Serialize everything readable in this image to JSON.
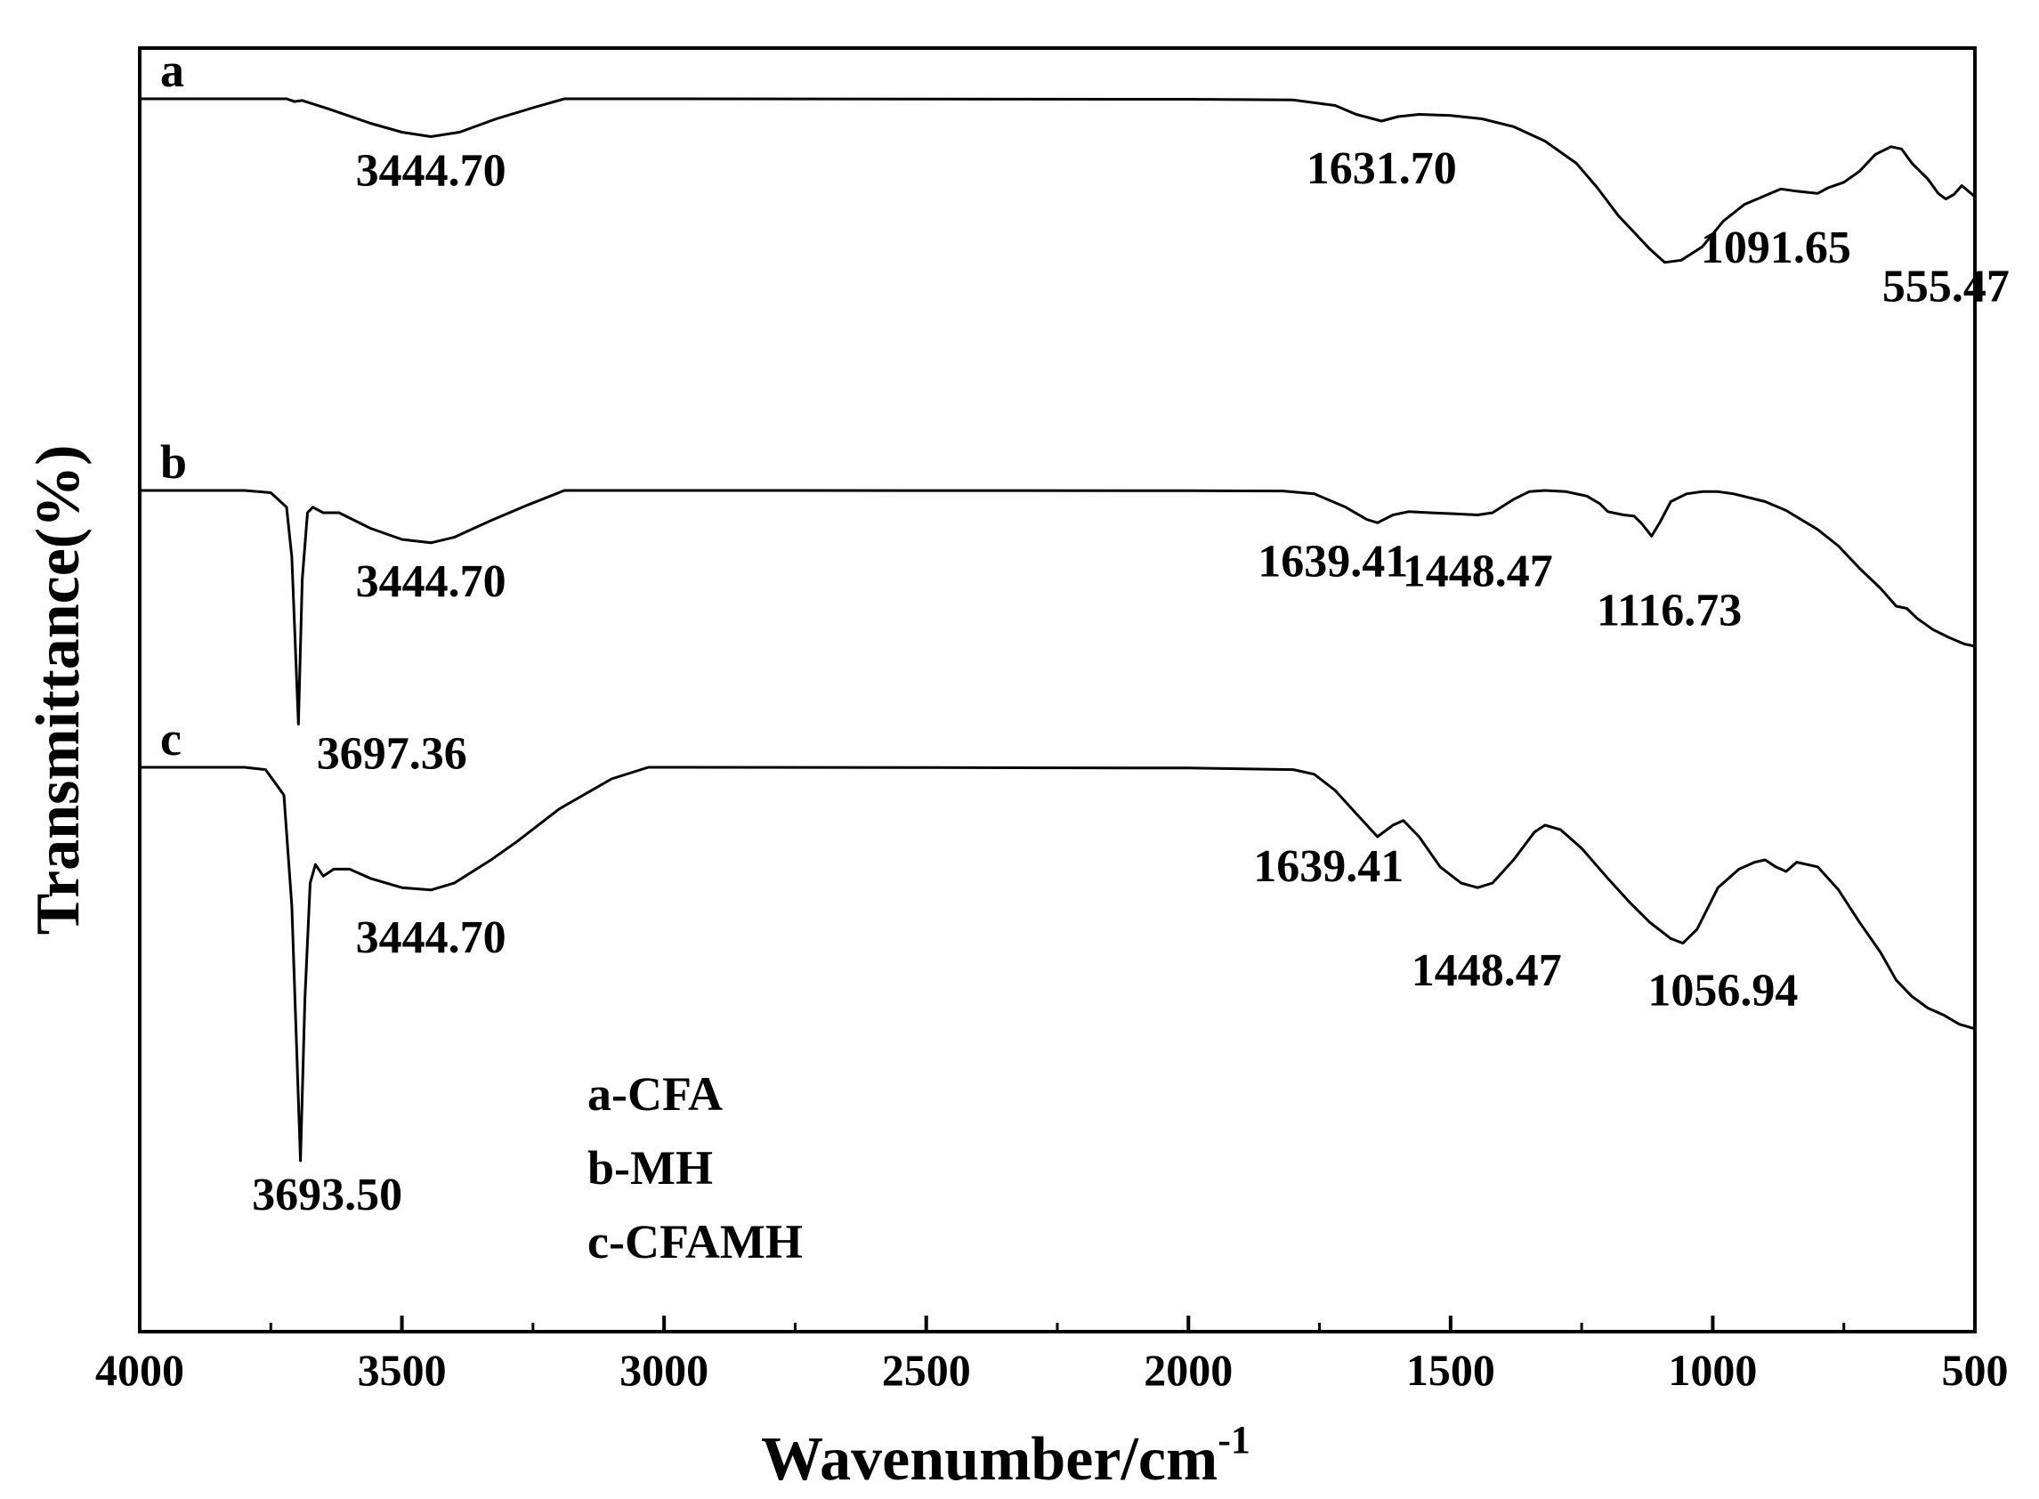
{
  "chart_data": {
    "type": "line",
    "xlabel": "Wavenumber/cm",
    "xlabel_sup": "-1",
    "ylabel": "Transmittance(%)",
    "xlim": [
      4000,
      500
    ],
    "x_ticks": [
      "4000",
      "3500",
      "3000",
      "2500",
      "2000",
      "1500",
      "1000",
      "500"
    ],
    "y_ticks": "none",
    "grid": false,
    "legend_position": "center-left",
    "legend": [
      "a-CFA",
      "b-MH",
      "c-CFAMH"
    ],
    "series": [
      {
        "name": "a",
        "points": [
          [
            4000,
            1.0
          ],
          [
            3720,
            1.0
          ],
          [
            3705,
            0.975
          ],
          [
            3690,
            0.985
          ],
          [
            3640,
            0.91
          ],
          [
            3560,
            0.78
          ],
          [
            3500,
            0.7
          ],
          [
            3444.7,
            0.66
          ],
          [
            3390,
            0.7
          ],
          [
            3320,
            0.82
          ],
          [
            3250,
            0.92
          ],
          [
            3190,
            1.0
          ],
          [
            3000,
            1.0
          ],
          [
            2500,
            0.998
          ],
          [
            2000,
            0.996
          ],
          [
            1800,
            0.99
          ],
          [
            1720,
            0.94
          ],
          [
            1680,
            0.86
          ],
          [
            1631.7,
            0.8
          ],
          [
            1600,
            0.84
          ],
          [
            1560,
            0.86
          ],
          [
            1500,
            0.85
          ],
          [
            1440,
            0.82
          ],
          [
            1380,
            0.75
          ],
          [
            1320,
            0.62
          ],
          [
            1260,
            0.42
          ],
          [
            1220,
            0.2
          ],
          [
            1180,
            -0.05
          ],
          [
            1150,
            -0.2
          ],
          [
            1120,
            -0.35
          ],
          [
            1091.65,
            -0.47
          ],
          [
            1060,
            -0.45
          ],
          [
            1020,
            -0.33
          ],
          [
            980,
            -0.1
          ],
          [
            940,
            0.05
          ],
          [
            900,
            0.13
          ],
          [
            870,
            0.19
          ],
          [
            840,
            0.17
          ],
          [
            800,
            0.15
          ],
          [
            780,
            0.2
          ],
          [
            750,
            0.25
          ],
          [
            720,
            0.35
          ],
          [
            690,
            0.5
          ],
          [
            660,
            0.57
          ],
          [
            640,
            0.55
          ],
          [
            620,
            0.42
          ],
          [
            590,
            0.28
          ],
          [
            570,
            0.15
          ],
          [
            555.47,
            0.1
          ],
          [
            540,
            0.14
          ],
          [
            525,
            0.22
          ],
          [
            510,
            0.16
          ],
          [
            500,
            0.12
          ]
        ]
      },
      {
        "name": "b",
        "points": [
          [
            4000,
            1.0
          ],
          [
            3800,
            1.0
          ],
          [
            3750,
            0.98
          ],
          [
            3720,
            0.85
          ],
          [
            3710,
            0.4
          ],
          [
            3697.36,
            -1.1
          ],
          [
            3690,
            0.2
          ],
          [
            3680,
            0.8
          ],
          [
            3670,
            0.85
          ],
          [
            3650,
            0.8
          ],
          [
            3620,
            0.8
          ],
          [
            3560,
            0.66
          ],
          [
            3500,
            0.56
          ],
          [
            3444.7,
            0.53
          ],
          [
            3400,
            0.58
          ],
          [
            3330,
            0.73
          ],
          [
            3260,
            0.87
          ],
          [
            3190,
            1.0
          ],
          [
            3000,
            1.0
          ],
          [
            2500,
            0.999
          ],
          [
            2000,
            0.998
          ],
          [
            1820,
            0.995
          ],
          [
            1760,
            0.97
          ],
          [
            1700,
            0.85
          ],
          [
            1660,
            0.74
          ],
          [
            1639.41,
            0.71
          ],
          [
            1610,
            0.78
          ],
          [
            1580,
            0.81
          ],
          [
            1540,
            0.8
          ],
          [
            1490,
            0.79
          ],
          [
            1448.47,
            0.78
          ],
          [
            1420,
            0.8
          ],
          [
            1380,
            0.92
          ],
          [
            1350,
            0.99
          ],
          [
            1320,
            1.0
          ],
          [
            1280,
            0.99
          ],
          [
            1240,
            0.95
          ],
          [
            1215,
            0.88
          ],
          [
            1200,
            0.81
          ],
          [
            1170,
            0.78
          ],
          [
            1150,
            0.77
          ],
          [
            1135,
            0.7
          ],
          [
            1116.73,
            0.59
          ],
          [
            1100,
            0.72
          ],
          [
            1080,
            0.9
          ],
          [
            1050,
            0.97
          ],
          [
            1020,
            0.99
          ],
          [
            990,
            0.99
          ],
          [
            960,
            0.97
          ],
          [
            900,
            0.9
          ],
          [
            860,
            0.82
          ],
          [
            800,
            0.65
          ],
          [
            760,
            0.5
          ],
          [
            720,
            0.3
          ],
          [
            680,
            0.12
          ],
          [
            650,
            -0.04
          ],
          [
            630,
            -0.06
          ],
          [
            610,
            -0.15
          ],
          [
            580,
            -0.25
          ],
          [
            550,
            -0.32
          ],
          [
            520,
            -0.38
          ],
          [
            500,
            -0.4
          ]
        ]
      },
      {
        "name": "c",
        "points": [
          [
            4000,
            1.0
          ],
          [
            3800,
            1.0
          ],
          [
            3760,
            0.99
          ],
          [
            3725,
            0.88
          ],
          [
            3710,
            0.4
          ],
          [
            3693.5,
            -0.7
          ],
          [
            3685,
            0.0
          ],
          [
            3675,
            0.5
          ],
          [
            3665,
            0.58
          ],
          [
            3650,
            0.53
          ],
          [
            3630,
            0.56
          ],
          [
            3600,
            0.56
          ],
          [
            3560,
            0.52
          ],
          [
            3500,
            0.48
          ],
          [
            3444.7,
            0.47
          ],
          [
            3400,
            0.5
          ],
          [
            3330,
            0.6
          ],
          [
            3280,
            0.68
          ],
          [
            3200,
            0.82
          ],
          [
            3100,
            0.95
          ],
          [
            3030,
            1.0
          ],
          [
            2500,
            0.999
          ],
          [
            2000,
            0.997
          ],
          [
            1800,
            0.99
          ],
          [
            1760,
            0.97
          ],
          [
            1720,
            0.9
          ],
          [
            1680,
            0.8
          ],
          [
            1639.41,
            0.7
          ],
          [
            1610,
            0.75
          ],
          [
            1590,
            0.77
          ],
          [
            1560,
            0.7
          ],
          [
            1520,
            0.57
          ],
          [
            1480,
            0.5
          ],
          [
            1448.47,
            0.48
          ],
          [
            1420,
            0.5
          ],
          [
            1380,
            0.6
          ],
          [
            1340,
            0.72
          ],
          [
            1320,
            0.75
          ],
          [
            1290,
            0.73
          ],
          [
            1250,
            0.65
          ],
          [
            1200,
            0.52
          ],
          [
            1160,
            0.42
          ],
          [
            1120,
            0.33
          ],
          [
            1080,
            0.26
          ],
          [
            1056.94,
            0.24
          ],
          [
            1030,
            0.3
          ],
          [
            990,
            0.48
          ],
          [
            950,
            0.56
          ],
          [
            920,
            0.59
          ],
          [
            900,
            0.6
          ],
          [
            880,
            0.57
          ],
          [
            860,
            0.55
          ],
          [
            840,
            0.59
          ],
          [
            800,
            0.57
          ],
          [
            760,
            0.47
          ],
          [
            720,
            0.33
          ],
          [
            680,
            0.2
          ],
          [
            650,
            0.08
          ],
          [
            620,
            0.01
          ],
          [
            590,
            -0.04
          ],
          [
            560,
            -0.07
          ],
          [
            530,
            -0.11
          ],
          [
            500,
            -0.13
          ]
        ]
      }
    ],
    "annotations": [
      {
        "series": "a",
        "text": "3444.70",
        "x": 3444.7
      },
      {
        "series": "a",
        "text": "1631.70",
        "x": 1631.7
      },
      {
        "series": "a",
        "text": "555.47",
        "x": 555.47
      },
      {
        "series": "a",
        "text": "1091.65",
        "x": 1091.65
      },
      {
        "series": "b",
        "text": "3444.70",
        "x": 3444.7
      },
      {
        "series": "b",
        "text": "3697.36",
        "x": 3697.36
      },
      {
        "series": "b",
        "text": "1639.41",
        "x": 1639.41
      },
      {
        "series": "b",
        "text": "1448.47",
        "x": 1448.47
      },
      {
        "series": "b",
        "text": "1116.73",
        "x": 1116.73
      },
      {
        "series": "c",
        "text": "3444.70",
        "x": 3444.7
      },
      {
        "series": "c",
        "text": "3693.50",
        "x": 3693.5
      },
      {
        "series": "c",
        "text": "1639.41",
        "x": 1639.41
      },
      {
        "series": "c",
        "text": "1448.47",
        "x": 1448.47
      },
      {
        "series": "c",
        "text": "1056.94",
        "x": 1056.94
      }
    ]
  }
}
